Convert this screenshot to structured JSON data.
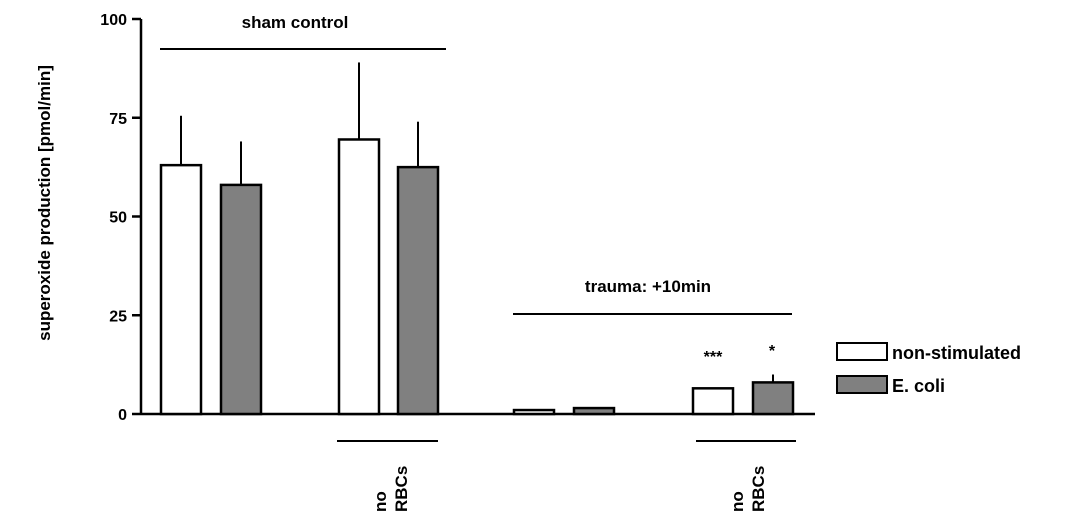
{
  "chart_data": {
    "type": "bar",
    "ylabel": "superoxide production [pmol/min]",
    "ylim": [
      0,
      100
    ],
    "yticks": [
      {
        "value": 0,
        "label": "0"
      },
      {
        "value": 25,
        "label": "25"
      },
      {
        "value": 50,
        "label": "50"
      },
      {
        "value": 75,
        "label": "75"
      },
      {
        "value": 100,
        "label": "100"
      }
    ],
    "series": [
      {
        "name": "non-stimulated",
        "color": "#ffffff"
      },
      {
        "name": "E. coli",
        "color": "#808080"
      }
    ],
    "bars": [
      {
        "series": "non-stimulated",
        "value": 63,
        "error": 12.5
      },
      {
        "series": "E. coli",
        "value": 58,
        "error": 11
      },
      {
        "series": "non-stimulated",
        "value": 69.5,
        "error": 19.5
      },
      {
        "series": "E. coli",
        "value": 62.5,
        "error": 11.5
      },
      {
        "series": "non-stimulated",
        "value": 1,
        "error": 0
      },
      {
        "series": "E. coli",
        "value": 1.5,
        "error": 0
      },
      {
        "series": "non-stimulated",
        "value": 6.5,
        "error": 0
      },
      {
        "series": "E. coli",
        "value": 8,
        "error": 2,
        "annotation": "*"
      }
    ],
    "group_labels": [
      "sham control",
      "trauma: +10min"
    ],
    "condition_label": [
      "no",
      "RBCs"
    ],
    "annotations": [
      "***",
      "*"
    ],
    "legend_position": "right"
  }
}
